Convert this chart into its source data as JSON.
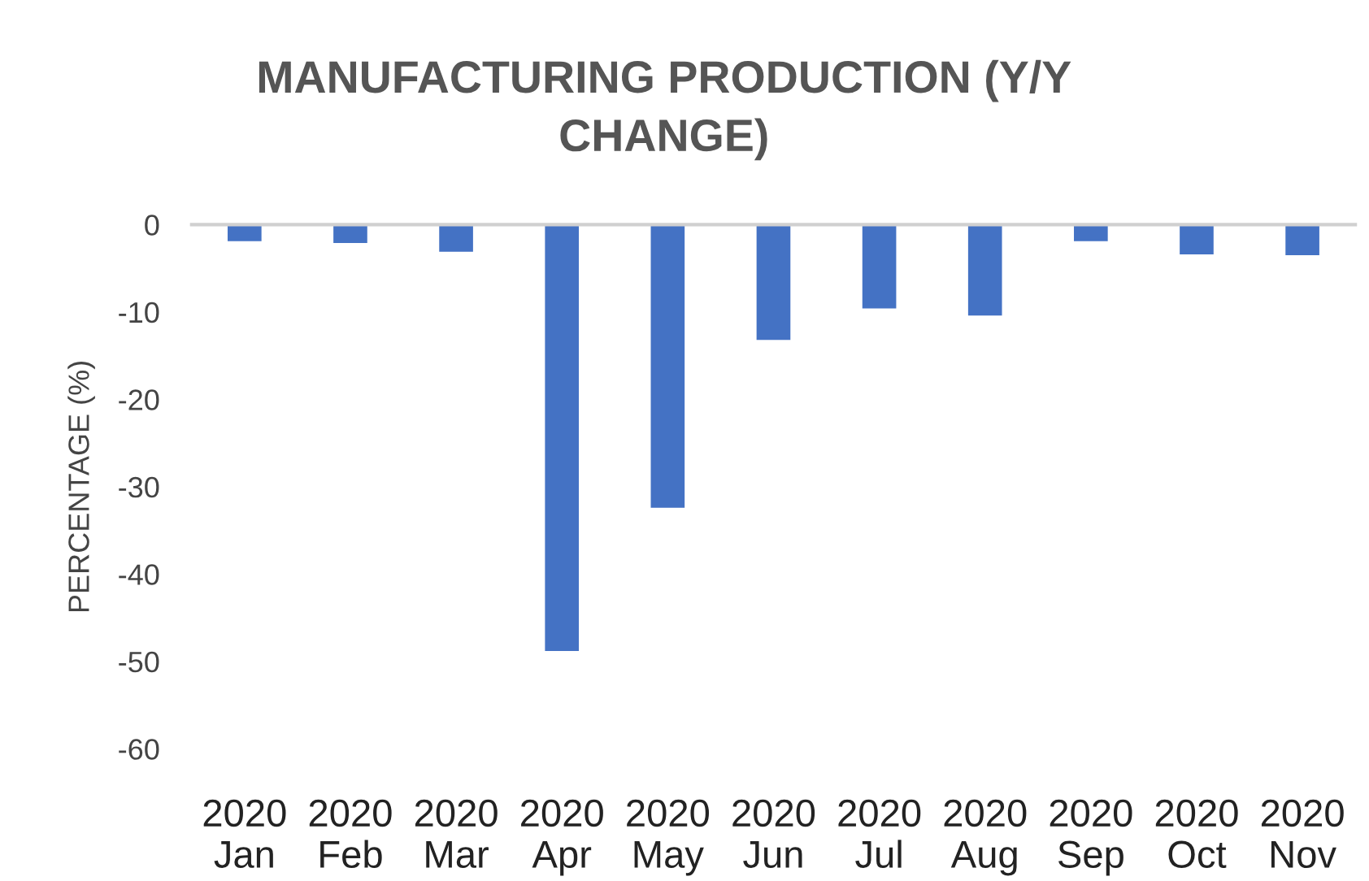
{
  "chart_data": {
    "type": "bar",
    "title": "MANUFACTURING PRODUCTION (Y/Y\nCHANGE)",
    "ylabel": "PERCENTAGE (%)",
    "categories": [
      "2020\nJan",
      "2020\nFeb",
      "2020\nMar",
      "2020\nApr",
      "2020\nMay",
      "2020\nJun",
      "2020\nJul",
      "2020\nAug",
      "2020\nSep",
      "2020\nOct",
      "2020\nNov"
    ],
    "values": [
      -1.9,
      -2.1,
      -3.1,
      -48.8,
      -32.4,
      -13.2,
      -9.6,
      -10.4,
      -1.9,
      -3.4,
      -3.5
    ],
    "color": "#4472c4",
    "ylim": [
      -60,
      0
    ],
    "yticks": [
      -60,
      -50,
      -40,
      -30,
      -20,
      -10,
      0
    ],
    "grid": false,
    "legend": false
  }
}
